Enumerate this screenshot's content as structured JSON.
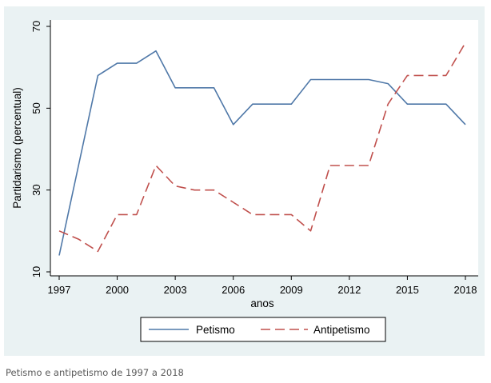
{
  "caption": "Petismo e antipetismo de 1997 a 2018",
  "chart_data": {
    "type": "line",
    "title": "",
    "xlabel": "anos",
    "ylabel": "Partidarismo (percentual)",
    "xlim": [
      1997,
      2018
    ],
    "ylim": [
      10,
      70
    ],
    "xticks": [
      "1997",
      "2000",
      "2003",
      "2006",
      "2009",
      "2012",
      "2015",
      "2018"
    ],
    "yticks": [
      "10",
      "30",
      "50",
      "70"
    ],
    "grid": false,
    "legend_position": "bottom",
    "x": [
      1997,
      1998,
      1999,
      2000,
      2001,
      2002,
      2003,
      2004,
      2005,
      2006,
      2007,
      2008,
      2009,
      2010,
      2011,
      2012,
      2013,
      2014,
      2015,
      2016,
      2017,
      2018
    ],
    "series": [
      {
        "name": "Petismo",
        "color": "#4f78a8",
        "dash": "solid",
        "values": [
          14,
          36,
          58,
          61,
          61,
          64,
          55,
          55,
          55,
          46,
          51,
          51,
          51,
          57,
          57,
          57,
          57,
          56,
          51,
          51,
          51,
          46
        ]
      },
      {
        "name": "Antipetismo",
        "color": "#c0504d",
        "dash": "dashed",
        "values": [
          20,
          18,
          15,
          24,
          24,
          36,
          31,
          30,
          30,
          27,
          24,
          24,
          24,
          20,
          36,
          36,
          36,
          51,
          58,
          58,
          58,
          66
        ]
      }
    ]
  }
}
